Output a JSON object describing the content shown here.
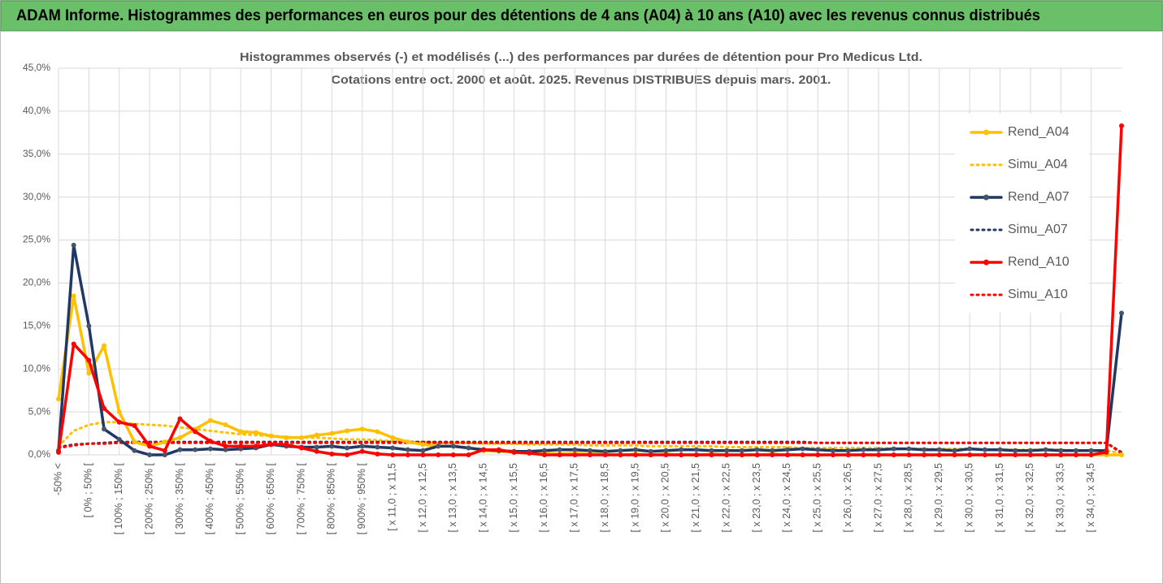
{
  "header": "ADAM Informe. Histogrammes des performances en euros pour des détentions de 4 ans (A04) à 10 ans (A10) avec les revenus connus distribués",
  "chart_data": {
    "type": "line",
    "title": "Histogrammes observés (-) et modélisés (...) des performances par durées de détention pour Pro Medicus Ltd.",
    "subtitle": "Cotations entre oct. 2000 et août. 2025. Revenus DISTRIBUES depuis mars. 2001.",
    "categories": [
      "-50% <",
      null,
      "[ 0% ; 50% [",
      null,
      "[ 100% ; 150% [",
      null,
      "[ 200% ; 250% [",
      null,
      "[ 300% ; 350% [",
      null,
      "[ 400% ; 450% [",
      null,
      "[ 500% ; 550% [",
      null,
      "[ 600% ; 650% [",
      null,
      "[ 700% ; 750% [",
      null,
      "[ 800% ; 850% [",
      null,
      "[ 900% ; 950% [",
      null,
      "[ x 11,0 ; x 11,5",
      null,
      "[ x 12,0 ; x 12,5",
      null,
      "[ x 13,0 ; x 13,5",
      null,
      "[ x 14,0 ; x 14,5",
      null,
      "[ x 15,0 ; x 15,5",
      null,
      "[ x 16,0 ; x 16,5",
      null,
      "[ x 17,0 ; x 17,5",
      null,
      "[ x 18,0 ; x 18,5",
      null,
      "[ x 19,0 ; x 19,5",
      null,
      "[ x 20,0 ; x 20,5",
      null,
      "[ x 21,0 ; x 21,5",
      null,
      "[ x 22,0 ; x 22,5",
      null,
      "[ x 23,0 ; x 23,5",
      null,
      "[ x 24,0 ; x 24,5",
      null,
      "[ x 25,0 ; x 25,5",
      null,
      "[ x 26,0 ; x 26,5",
      null,
      "[ x 27,0 ; x 27,5",
      null,
      "[ x 28,0 ; x 28,5",
      null,
      "[ x 29,0 ; x 29,5",
      null,
      "[ x 30,0 ; x 30,5",
      null,
      "[ x 31,0 ; x 31,5",
      null,
      "[ x 32,0 ; x 32,5",
      null,
      "[ x 33,0 ; x 33,5",
      null,
      "[ x 34,0 ; x 34,5",
      null,
      null
    ],
    "series": [
      {
        "name": "Rend_A04",
        "color": "#FFC000",
        "style": "solid",
        "values": [
          6.5,
          18.5,
          9.5,
          12.7,
          5.0,
          1.5,
          1.0,
          1.5,
          2.0,
          3.0,
          4.0,
          3.5,
          2.7,
          2.6,
          2.2,
          2.0,
          2.0,
          2.3,
          2.5,
          2.8,
          3.0,
          2.7,
          2.0,
          1.5,
          1.2,
          1.0,
          1.0,
          0.8,
          0.5,
          0.4,
          0.3,
          0.2,
          0.2,
          0.1,
          0.2,
          0.1,
          0.1,
          0.0,
          0.1,
          0.0,
          0.1,
          0.0,
          0.0,
          0.1,
          0.0,
          0.0,
          0.0,
          0.1,
          0.0,
          0.0,
          0.0,
          0.0,
          0.0,
          0.0,
          0.0,
          0.0,
          0.0,
          0.0,
          0.0,
          0.0,
          0.0,
          0.0,
          0.0,
          0.0,
          0.0,
          0.0,
          0.0,
          0.0,
          0.0,
          0.0,
          0.0
        ]
      },
      {
        "name": "Simu_A04",
        "color": "#FFC000",
        "style": "dotted",
        "values": [
          1.0,
          2.8,
          3.5,
          3.8,
          3.8,
          3.6,
          3.5,
          3.4,
          3.2,
          3.0,
          2.8,
          2.6,
          2.4,
          2.3,
          2.2,
          2.1,
          2.0,
          2.0,
          1.9,
          1.8,
          1.8,
          1.7,
          1.6,
          1.5,
          1.5,
          1.4,
          1.4,
          1.4,
          1.3,
          1.3,
          1.3,
          1.2,
          1.2,
          1.2,
          1.2,
          1.1,
          1.1,
          1.1,
          1.1,
          1.0,
          1.0,
          1.0,
          1.0,
          1.0,
          0.9,
          0.9,
          0.9,
          0.9,
          0.9,
          0.8,
          0.8,
          0.8,
          0.8,
          0.8,
          0.8,
          0.7,
          0.7,
          0.7,
          0.7,
          0.7,
          0.7,
          0.6,
          0.6,
          0.6,
          0.6,
          0.6,
          0.6,
          0.5,
          0.5,
          0.5,
          0.2
        ]
      },
      {
        "name": "Rend_A07",
        "color": "#1F3864",
        "style": "solid",
        "values": [
          0.5,
          24.4,
          15.0,
          3.0,
          1.8,
          0.5,
          0.0,
          0.0,
          0.6,
          0.6,
          0.7,
          0.6,
          0.7,
          0.8,
          1.2,
          1.0,
          0.9,
          0.9,
          1.0,
          0.8,
          1.0,
          0.9,
          0.8,
          0.6,
          0.5,
          1.0,
          1.0,
          0.8,
          0.6,
          0.5,
          0.4,
          0.4,
          0.5,
          0.6,
          0.6,
          0.5,
          0.4,
          0.5,
          0.6,
          0.4,
          0.5,
          0.6,
          0.6,
          0.5,
          0.5,
          0.5,
          0.6,
          0.5,
          0.6,
          0.7,
          0.6,
          0.5,
          0.5,
          0.6,
          0.6,
          0.7,
          0.7,
          0.6,
          0.6,
          0.5,
          0.7,
          0.6,
          0.6,
          0.5,
          0.5,
          0.6,
          0.5,
          0.5,
          0.5,
          0.5,
          16.5
        ]
      },
      {
        "name": "Simu_A07",
        "color": "#1F3864",
        "style": "dotted",
        "values": [
          0.9,
          1.2,
          1.3,
          1.4,
          1.5,
          1.5,
          1.5,
          1.5,
          1.5,
          1.5,
          1.5,
          1.5,
          1.5,
          1.5,
          1.5,
          1.5,
          1.5,
          1.5,
          1.5,
          1.5,
          1.5,
          1.5,
          1.5,
          1.5,
          1.5,
          1.5,
          1.5,
          1.5,
          1.5,
          1.5,
          1.5,
          1.5,
          1.5,
          1.5,
          1.5,
          1.5,
          1.5,
          1.5,
          1.5,
          1.5,
          1.5,
          1.5,
          1.5,
          1.5,
          1.5,
          1.5,
          1.5,
          1.5,
          1.5,
          1.5,
          1.4,
          1.4,
          1.4,
          1.4,
          1.4,
          1.4,
          1.4,
          1.4,
          1.4,
          1.4,
          1.4,
          1.4,
          1.4,
          1.4,
          1.4,
          1.4,
          1.4,
          1.4,
          1.4,
          1.4,
          0.3
        ]
      },
      {
        "name": "Rend_A10",
        "color": "#FF0000",
        "style": "solid",
        "values": [
          0.3,
          12.9,
          11.0,
          5.4,
          3.8,
          3.4,
          1.0,
          0.5,
          4.2,
          2.7,
          1.6,
          1.0,
          1.0,
          1.0,
          1.2,
          1.2,
          0.8,
          0.4,
          0.1,
          0.0,
          0.4,
          0.1,
          0.0,
          0.0,
          0.0,
          0.0,
          0.0,
          0.0,
          0.6,
          0.6,
          0.3,
          0.2,
          0.0,
          0.0,
          0.0,
          0.0,
          0.0,
          0.0,
          0.0,
          0.0,
          0.0,
          0.0,
          0.0,
          0.0,
          0.0,
          0.0,
          0.0,
          0.0,
          0.0,
          0.0,
          0.0,
          0.0,
          0.0,
          0.0,
          0.0,
          0.0,
          0.0,
          0.0,
          0.0,
          0.0,
          0.0,
          0.0,
          0.0,
          0.0,
          0.0,
          0.0,
          0.0,
          0.0,
          0.0,
          0.3,
          38.3
        ]
      },
      {
        "name": "Simu_A10",
        "color": "#FF0000",
        "style": "dotted",
        "values": [
          0.8,
          1.1,
          1.3,
          1.3,
          1.4,
          1.4,
          1.4,
          1.4,
          1.4,
          1.4,
          1.4,
          1.4,
          1.4,
          1.4,
          1.4,
          1.4,
          1.4,
          1.4,
          1.4,
          1.4,
          1.4,
          1.4,
          1.4,
          1.4,
          1.4,
          1.4,
          1.4,
          1.4,
          1.4,
          1.4,
          1.4,
          1.4,
          1.4,
          1.4,
          1.4,
          1.4,
          1.4,
          1.4,
          1.4,
          1.4,
          1.4,
          1.4,
          1.4,
          1.4,
          1.4,
          1.4,
          1.4,
          1.4,
          1.4,
          1.4,
          1.4,
          1.4,
          1.4,
          1.4,
          1.4,
          1.4,
          1.4,
          1.4,
          1.4,
          1.4,
          1.4,
          1.4,
          1.4,
          1.4,
          1.4,
          1.4,
          1.4,
          1.4,
          1.4,
          1.4,
          0.2
        ]
      }
    ],
    "ylim": [
      0,
      45
    ],
    "yticks": [
      {
        "value": 0,
        "label": "0,0%"
      },
      {
        "value": 5,
        "label": "5,0%"
      },
      {
        "value": 10,
        "label": "10,0%"
      },
      {
        "value": 15,
        "label": "15,0%"
      },
      {
        "value": 20,
        "label": "20,0%"
      },
      {
        "value": 25,
        "label": "25,0%"
      },
      {
        "value": 30,
        "label": "30,0%"
      },
      {
        "value": 35,
        "label": "35,0%"
      },
      {
        "value": 40,
        "label": "40,0%"
      },
      {
        "value": 45,
        "label": "45,0%"
      }
    ],
    "grid": true,
    "legend": "right"
  }
}
